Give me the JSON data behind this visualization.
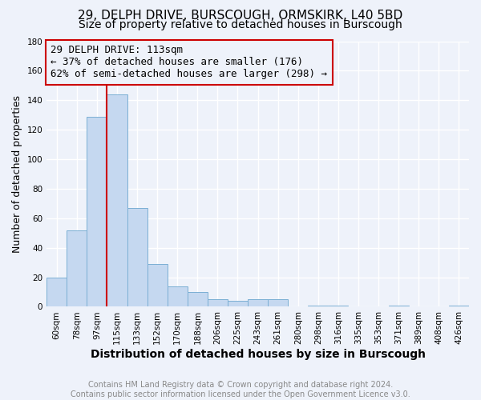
{
  "title": "29, DELPH DRIVE, BURSCOUGH, ORMSKIRK, L40 5BD",
  "subtitle": "Size of property relative to detached houses in Burscough",
  "xlabel": "Distribution of detached houses by size in Burscough",
  "ylabel": "Number of detached properties",
  "footer_line1": "Contains HM Land Registry data © Crown copyright and database right 2024.",
  "footer_line2": "Contains public sector information licensed under the Open Government Licence v3.0.",
  "bar_labels": [
    "60sqm",
    "78sqm",
    "97sqm",
    "115sqm",
    "133sqm",
    "152sqm",
    "170sqm",
    "188sqm",
    "206sqm",
    "225sqm",
    "243sqm",
    "261sqm",
    "280sqm",
    "298sqm",
    "316sqm",
    "335sqm",
    "353sqm",
    "371sqm",
    "389sqm",
    "408sqm",
    "426sqm"
  ],
  "bar_values": [
    20,
    52,
    129,
    144,
    67,
    29,
    14,
    10,
    5,
    4,
    5,
    5,
    0,
    1,
    1,
    0,
    0,
    1,
    0,
    0,
    1
  ],
  "bar_color": "#c5d8f0",
  "bar_edge_color": "#7bafd4",
  "ylim": [
    0,
    180
  ],
  "yticks": [
    0,
    20,
    40,
    60,
    80,
    100,
    120,
    140,
    160,
    180
  ],
  "property_label": "29 DELPH DRIVE: 113sqm",
  "annotation_line1": "← 37% of detached houses are smaller (176)",
  "annotation_line2": "62% of semi-detached houses are larger (298) →",
  "vline_color": "#cc0000",
  "annotation_box_edge_color": "#cc0000",
  "background_color": "#eef2fa",
  "grid_color": "#ffffff",
  "title_fontsize": 11,
  "subtitle_fontsize": 10,
  "xlabel_fontsize": 10,
  "ylabel_fontsize": 9,
  "tick_fontsize": 7.5,
  "annotation_fontsize": 9,
  "footer_fontsize": 7,
  "footer_color": "#888888"
}
